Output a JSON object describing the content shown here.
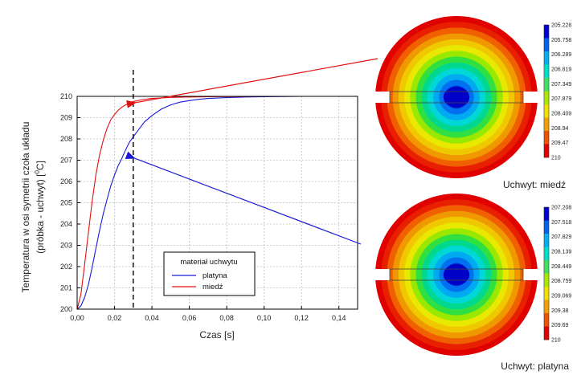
{
  "chart_data": [
    {
      "type": "line",
      "xlabel": "Czas [s]",
      "ylabel_line1": "Temperatura w osi symetrii czoła układu",
      "ylabel_line2_prefix": "(próbka - uchwyt) [",
      "ylabel_unit_sup": "0",
      "ylabel_unit": "C]",
      "xlim": [
        0,
        0.15
      ],
      "ylim": [
        200,
        210
      ],
      "x_ticks": [
        "0,00",
        "0,02",
        "0,04",
        "0,06",
        "0,08",
        "0,10",
        "0,12",
        "0,14"
      ],
      "y_ticks": [
        "200",
        "201",
        "202",
        "203",
        "204",
        "205",
        "206",
        "207",
        "208",
        "209",
        "210"
      ],
      "grid": true,
      "legend": {
        "title": "materiał uchwytu",
        "placement": "bottom-center",
        "entries": [
          "platyna",
          "miedź"
        ]
      },
      "series": [
        {
          "name": "platyna",
          "color": "#1a1ad6",
          "x": [
            0,
            0.002,
            0.004,
            0.006,
            0.008,
            0.01,
            0.012,
            0.014,
            0.016,
            0.018,
            0.02,
            0.022,
            0.024,
            0.026,
            0.028,
            0.03,
            0.033,
            0.036,
            0.04,
            0.045,
            0.05,
            0.055,
            0.06,
            0.065,
            0.07,
            0.08,
            0.09,
            0.1,
            0.12,
            0.15
          ],
          "y": [
            200,
            200.15,
            200.55,
            201.15,
            201.95,
            202.85,
            203.7,
            204.5,
            205.15,
            205.8,
            206.3,
            206.75,
            207.1,
            207.5,
            207.85,
            208.1,
            208.45,
            208.8,
            209.1,
            209.4,
            209.6,
            209.73,
            209.8,
            209.86,
            209.9,
            209.94,
            209.97,
            209.98,
            210,
            210
          ]
        },
        {
          "name": "miedź",
          "color": "#e01010",
          "x": [
            0,
            0.002,
            0.004,
            0.006,
            0.008,
            0.01,
            0.012,
            0.014,
            0.016,
            0.018,
            0.02,
            0.022,
            0.024,
            0.027,
            0.03,
            0.035,
            0.04,
            0.045,
            0.05,
            0.06,
            0.07,
            0.08,
            0.1
          ],
          "y": [
            200,
            200.7,
            202.1,
            203.6,
            205.05,
            206.3,
            207.25,
            207.95,
            208.5,
            208.9,
            209.15,
            209.35,
            209.5,
            209.65,
            209.76,
            209.85,
            209.9,
            209.93,
            209.95,
            209.97,
            209.98,
            209.99,
            210
          ]
        }
      ],
      "annotations": [
        {
          "type": "vline",
          "x": 0.03,
          "style": "dashed",
          "color": "#111111"
        }
      ],
      "arrows": [
        {
          "color": "#e01010",
          "target": {
            "x": 0.03,
            "y": 209.7
          },
          "points_to": "colormap-miedz"
        },
        {
          "color": "#1a1ad6",
          "target": {
            "x": 0.03,
            "y": 207.1
          },
          "points_to": "colormap-platyna"
        }
      ]
    },
    {
      "type": "heatmap",
      "id": "colormap-miedz",
      "caption": "Uchwyt: miedź",
      "colorbar_ticks": [
        "205.228",
        "205.758",
        "206.289",
        "206.819",
        "207.349",
        "207.879",
        "208.409",
        "208.94",
        "209.47",
        "210"
      ]
    },
    {
      "type": "heatmap",
      "id": "colormap-platyna",
      "caption": "Uchwyt: platyna",
      "colorbar_ticks": [
        "207.208",
        "207.518",
        "207.829",
        "208.139",
        "208.449",
        "208.759",
        "209.069",
        "209.38",
        "209.69",
        "210"
      ]
    }
  ]
}
